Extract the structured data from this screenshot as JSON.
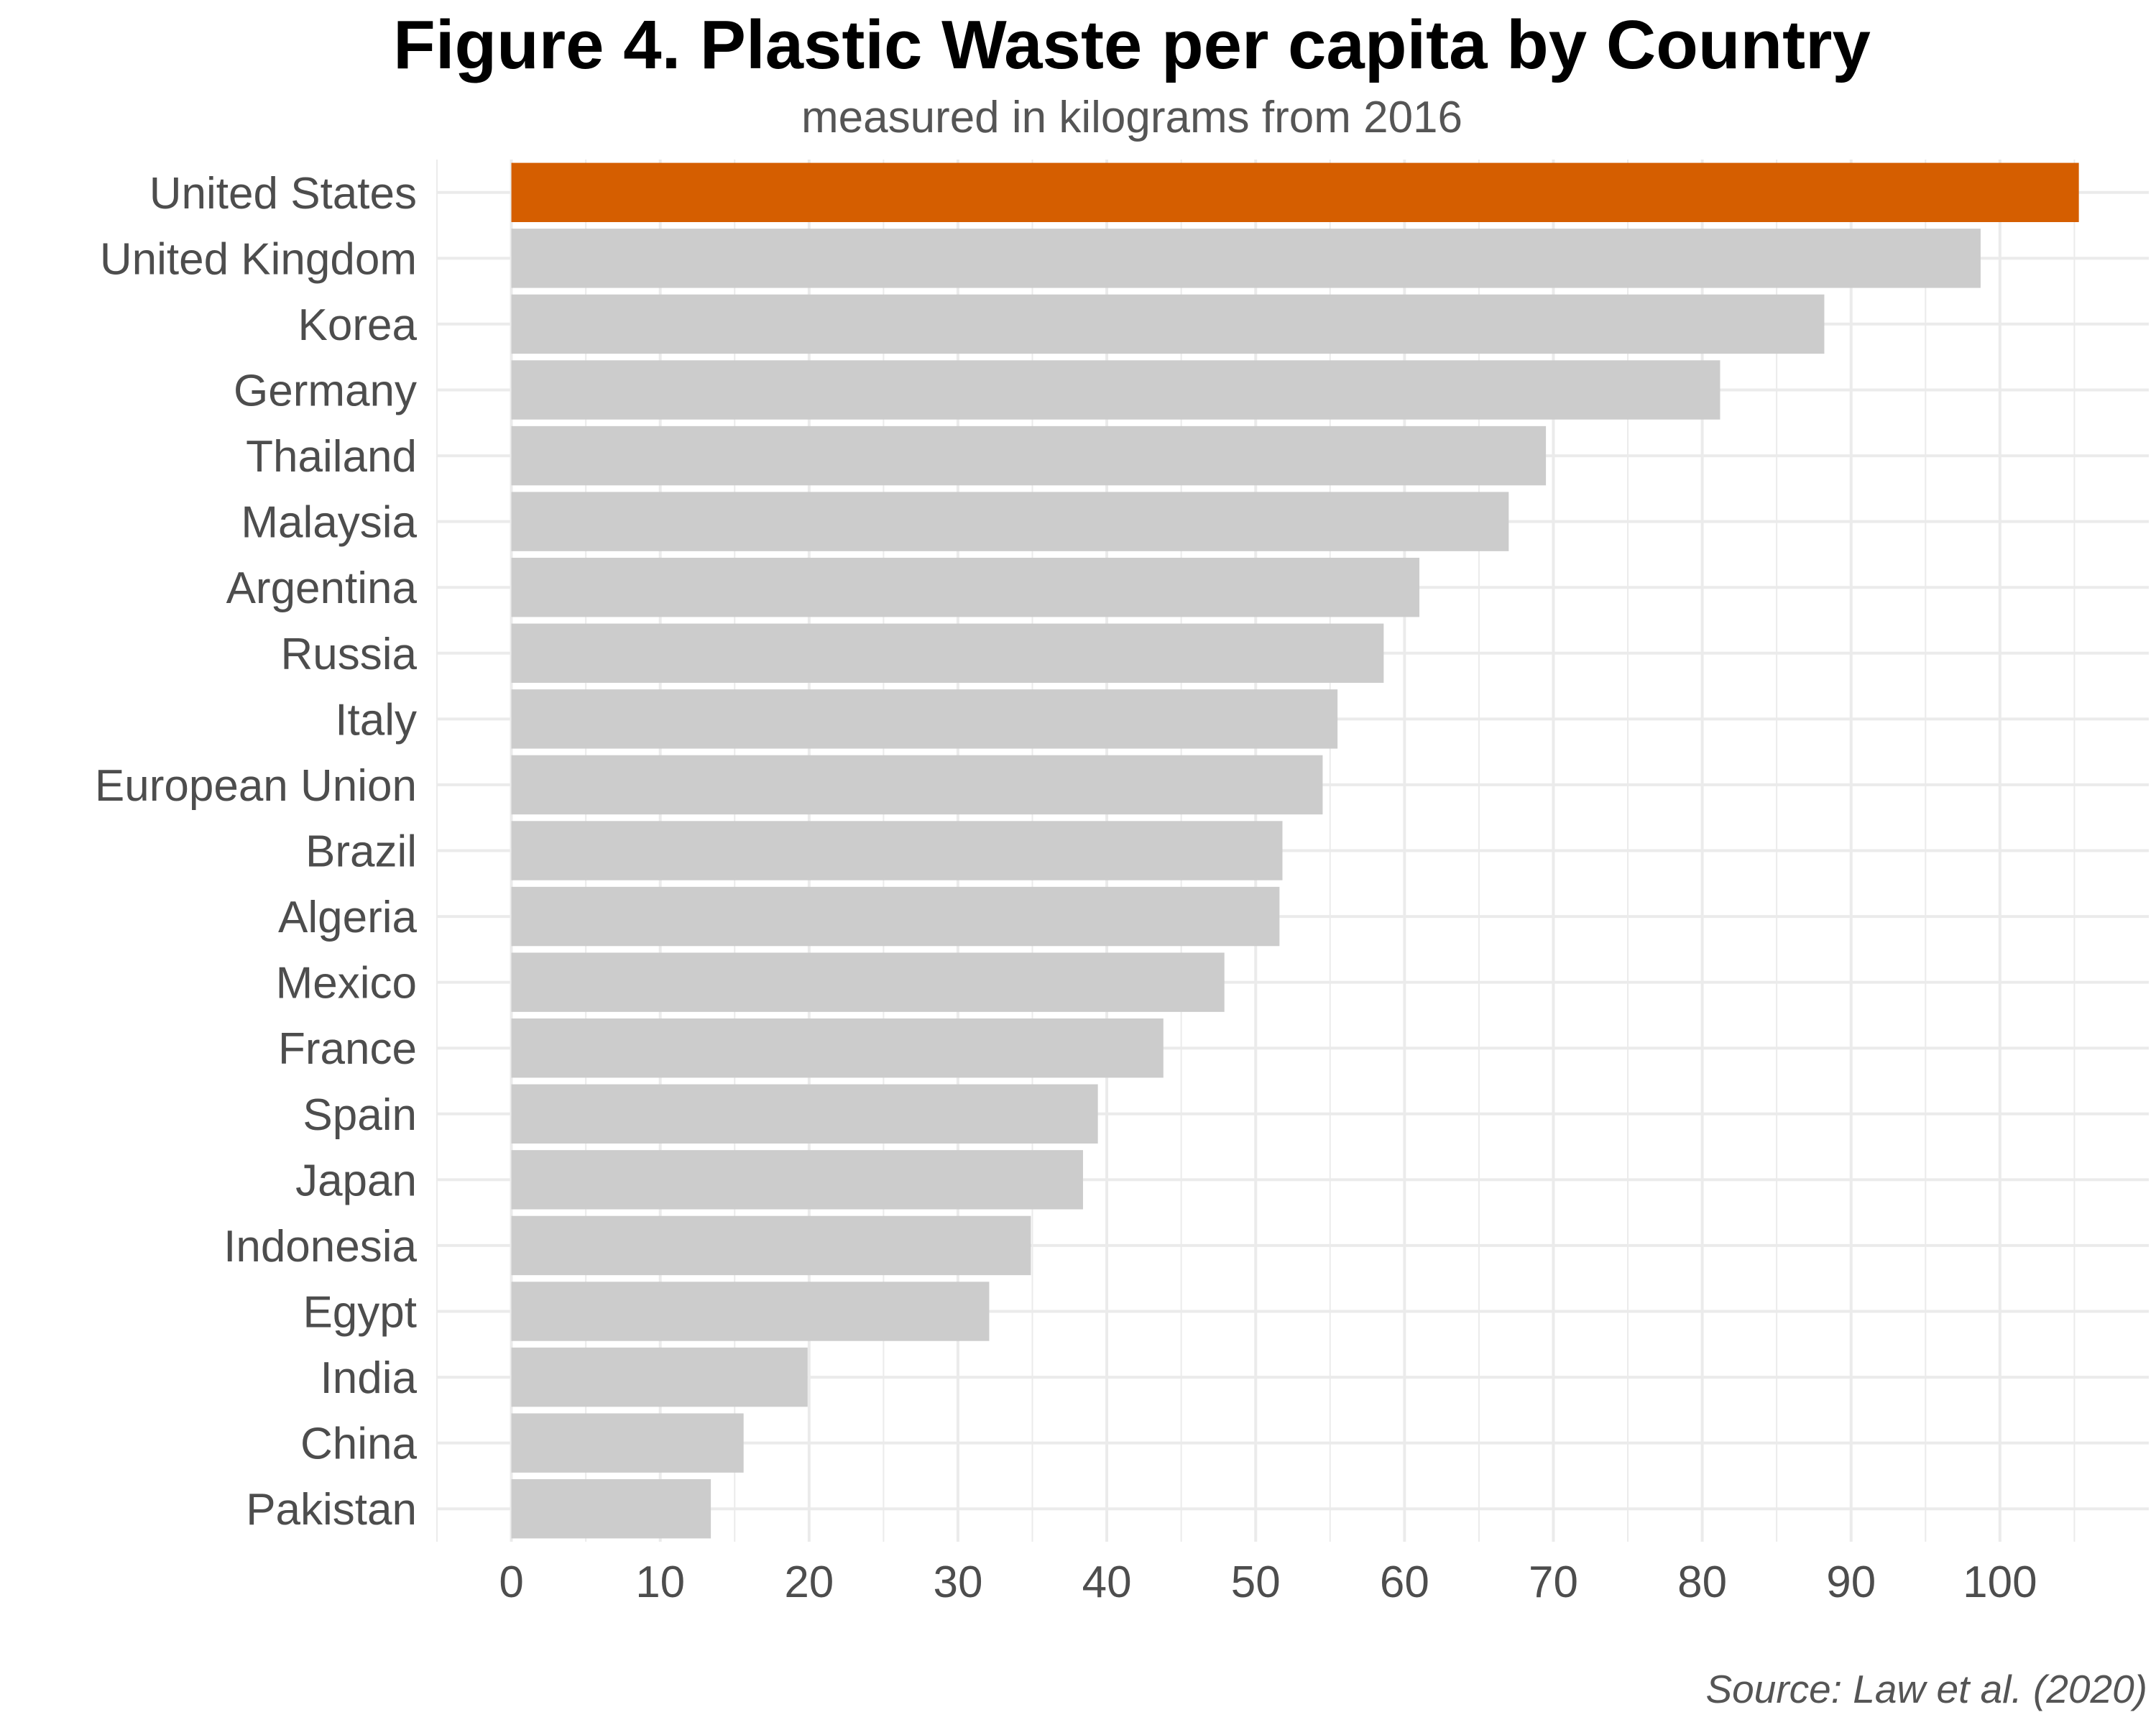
{
  "chart_data": {
    "type": "bar",
    "orientation": "horizontal",
    "title": "Figure 4. Plastic Waste per capita by Country",
    "subtitle": "measured in kilograms from 2016",
    "caption": "Source: Law et al. (2020)",
    "xlabel": "",
    "ylabel": "",
    "xlim": [
      -5,
      110
    ],
    "x_ticks": [
      0,
      10,
      20,
      30,
      40,
      50,
      60,
      70,
      80,
      90,
      100
    ],
    "grid": true,
    "legend": "none",
    "colors": {
      "highlight": "#D55E00",
      "default": "#CCCCCC",
      "grid": "#EBEBEB"
    },
    "highlighted_category": "United States",
    "categories": [
      "United States",
      "United Kingdom",
      "Korea",
      "Germany",
      "Thailand",
      "Malaysia",
      "Argentina",
      "Russia",
      "Italy",
      "European Union",
      "Brazil",
      "Algeria",
      "Mexico",
      "France",
      "Spain",
      "Japan",
      "Indonesia",
      "Egypt",
      "India",
      "China",
      "Pakistan"
    ],
    "values": [
      105.3,
      98.7,
      88.2,
      81.2,
      69.5,
      67.0,
      61.0,
      58.6,
      55.5,
      54.5,
      51.8,
      51.6,
      47.9,
      43.8,
      39.4,
      38.4,
      34.9,
      32.1,
      19.9,
      15.6,
      13.4
    ]
  }
}
